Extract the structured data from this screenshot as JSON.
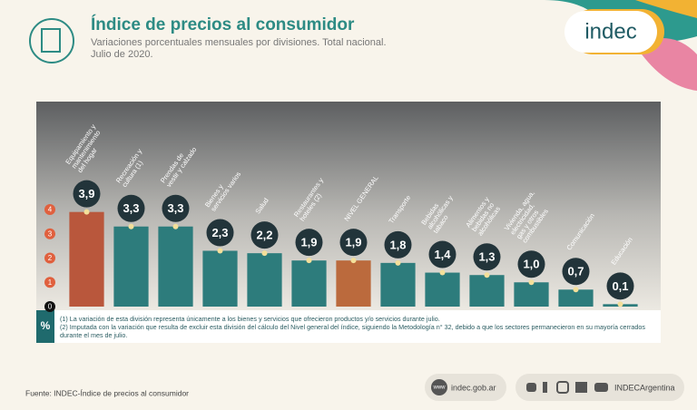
{
  "chart_data": {
    "type": "bar",
    "title": "Índice de precios al consumidor",
    "subtitle": [
      "Variaciones porcentuales mensuales por divisiones. Total nacional.",
      "Julio de 2020."
    ],
    "categories": [
      "Equipamiento y mantenimiento del hogar",
      "Recreación y cultura (1)",
      "Prendas de vestir y calzado",
      "Bienes y servicios varios",
      "Salud",
      "Restaurantes y hoteles (2)",
      "NIVEL GENERAL",
      "Transporte",
      "Bebidas alcohólicas y tabaco",
      "Alimentos y bebidas no alcohólicas",
      "Vivienda, agua, electricidad, gas y otros combustibles",
      "Comunicación",
      "Educación"
    ],
    "values": [
      3.9,
      3.3,
      3.3,
      2.3,
      2.2,
      1.9,
      1.9,
      1.8,
      1.4,
      1.3,
      1.0,
      0.7,
      0.1
    ],
    "value_labels": [
      "3,9",
      "3,3",
      "3,3",
      "2,3",
      "2,2",
      "1,9",
      "1,9",
      "1,8",
      "1,4",
      "1,3",
      "1,0",
      "0,7",
      "0,1"
    ],
    "colors": [
      "#b9573c",
      "#2d7c7c",
      "#2d7c7c",
      "#2d7c7c",
      "#2d7c7c",
      "#2d7c7c",
      "#bb6a3d",
      "#2d7c7c",
      "#2d7c7c",
      "#2d7c7c",
      "#2d7c7c",
      "#2d7c7c",
      "#2d7c7c"
    ],
    "ylim": [
      0,
      4
    ],
    "yticks": [
      0,
      1,
      2,
      3,
      4
    ],
    "unit": "%",
    "notes": [
      "(1) La variación de esta división representa únicamente a los bienes y servicios que ofrecieron productos y/o servicios durante julio.",
      "(2) Imputada con la variación que resulta de excluir esta división del cálculo del Nivel general del índice, siguiendo la Metodología n° 32, debido a que los sectores permanecieron en su mayoría cerrados durante el mes de julio."
    ],
    "source": "Fuente: INDEC-Índice de precios al consumidor"
  },
  "logo": "indec",
  "footer": {
    "web_prefix": "www",
    "web": "indec.gob.ar",
    "social": "INDECArgentina"
  }
}
